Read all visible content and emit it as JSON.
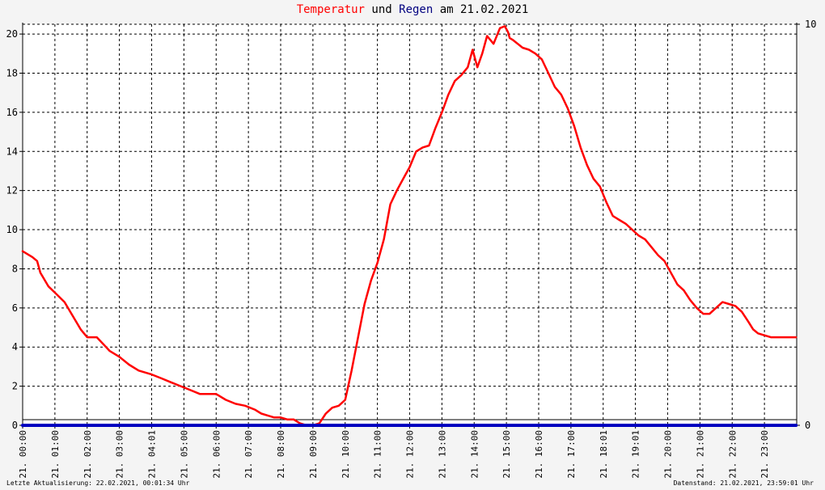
{
  "title": {
    "part1": "Temperatur",
    "part2": " und ",
    "part3": "Regen",
    "part4": " am 21.02.2021",
    "color_temp": "#ff0000",
    "color_rain": "#000080"
  },
  "footer": {
    "left": "Letzte Aktualisierung: 22.02.2021, 00:01:34 Uhr",
    "right": "Datenstand: 21.02.2021, 23:59:01 Uhr"
  },
  "chart_data": {
    "type": "line",
    "grid": true,
    "x_tick_labels": [
      "21. 00:00",
      "21. 01:00",
      "21. 02:00",
      "21. 03:00",
      "21. 04:01",
      "21. 05:00",
      "21. 06:00",
      "21. 07:00",
      "21. 08:00",
      "21. 09:00",
      "21. 10:00",
      "21. 11:00",
      "21. 12:00",
      "21. 13:00",
      "21. 14:00",
      "21. 15:00",
      "21. 16:00",
      "21. 17:00",
      "21. 18:01",
      "21. 19:01",
      "21. 20:00",
      "21. 21:00",
      "21. 22:00",
      "21. 23:00"
    ],
    "y_left": {
      "min": 0,
      "max": 20.5,
      "ticks": [
        0,
        2,
        4,
        6,
        8,
        10,
        12,
        14,
        16,
        18,
        20
      ]
    },
    "y_right": {
      "min": 0,
      "max": 10,
      "ticks": [
        0,
        10
      ]
    },
    "series": [
      {
        "name": "Temperatur",
        "color": "#ff0000",
        "axis": "left",
        "x_hours": [
          0,
          0.3,
          0.45,
          0.55,
          0.8,
          1.05,
          1.3,
          1.55,
          1.8,
          2.0,
          2.3,
          2.7,
          3.0,
          3.3,
          3.6,
          4.0,
          4.3,
          4.6,
          4.9,
          5.2,
          5.5,
          6.0,
          6.3,
          6.6,
          6.9,
          7.2,
          7.4,
          7.6,
          7.8,
          8.0,
          8.2,
          8.4,
          8.6,
          8.8,
          9.0,
          9.2,
          9.4,
          9.6,
          9.8,
          10.0,
          10.2,
          10.4,
          10.6,
          10.8,
          11.0,
          11.2,
          11.4,
          11.6,
          11.8,
          12.0,
          12.2,
          12.4,
          12.6,
          12.8,
          13.0,
          13.2,
          13.4,
          13.6,
          13.8,
          13.95,
          14.1,
          14.25,
          14.4,
          14.6,
          14.8,
          14.95,
          15.05,
          15.1,
          15.2,
          15.35,
          15.5,
          15.7,
          15.9,
          16.1,
          16.3,
          16.5,
          16.7,
          16.9,
          17.1,
          17.3,
          17.5,
          17.7,
          17.9,
          18.1,
          18.3,
          18.5,
          18.7,
          18.9,
          19.1,
          19.3,
          19.5,
          19.7,
          19.9,
          20.1,
          20.3,
          20.5,
          20.7,
          20.9,
          21.1,
          21.3,
          21.5,
          21.7,
          21.9,
          22.1,
          22.3,
          22.5,
          22.65,
          22.8,
          23.0,
          23.2,
          23.4,
          23.6,
          23.8,
          23.98
        ],
        "values": [
          8.9,
          8.6,
          8.4,
          7.8,
          7.1,
          6.7,
          6.3,
          5.6,
          4.9,
          4.5,
          4.5,
          3.8,
          3.5,
          3.1,
          2.8,
          2.6,
          2.4,
          2.2,
          2.0,
          1.8,
          1.6,
          1.6,
          1.3,
          1.1,
          1.0,
          0.8,
          0.6,
          0.5,
          0.4,
          0.4,
          0.3,
          0.3,
          0.1,
          0.0,
          0.0,
          0.1,
          0.6,
          0.9,
          1.0,
          1.3,
          2.8,
          4.5,
          6.2,
          7.4,
          8.3,
          9.5,
          11.3,
          12.0,
          12.6,
          13.2,
          14.0,
          14.2,
          14.3,
          15.2,
          16.0,
          16.9,
          17.6,
          17.9,
          18.3,
          19.2,
          18.3,
          19.0,
          19.9,
          19.5,
          20.3,
          20.4,
          20.1,
          19.8,
          19.7,
          19.5,
          19.3,
          19.2,
          19.0,
          18.7,
          18.0,
          17.3,
          16.9,
          16.2,
          15.3,
          14.2,
          13.3,
          12.6,
          12.2,
          11.4,
          10.7,
          10.5,
          10.3,
          10.0,
          9.7,
          9.5,
          9.1,
          8.7,
          8.4,
          7.8,
          7.2,
          6.9,
          6.4,
          6.0,
          5.7,
          5.7,
          6.0,
          6.3,
          6.2,
          6.1,
          5.8,
          5.3,
          4.9,
          4.7,
          4.6,
          4.5,
          4.5,
          4.5,
          4.5,
          4.5
        ]
      },
      {
        "name": "Regen",
        "color": "#0000c0",
        "axis": "right",
        "x_hours": [
          0,
          23.98
        ],
        "values": [
          0,
          0
        ]
      }
    ]
  }
}
